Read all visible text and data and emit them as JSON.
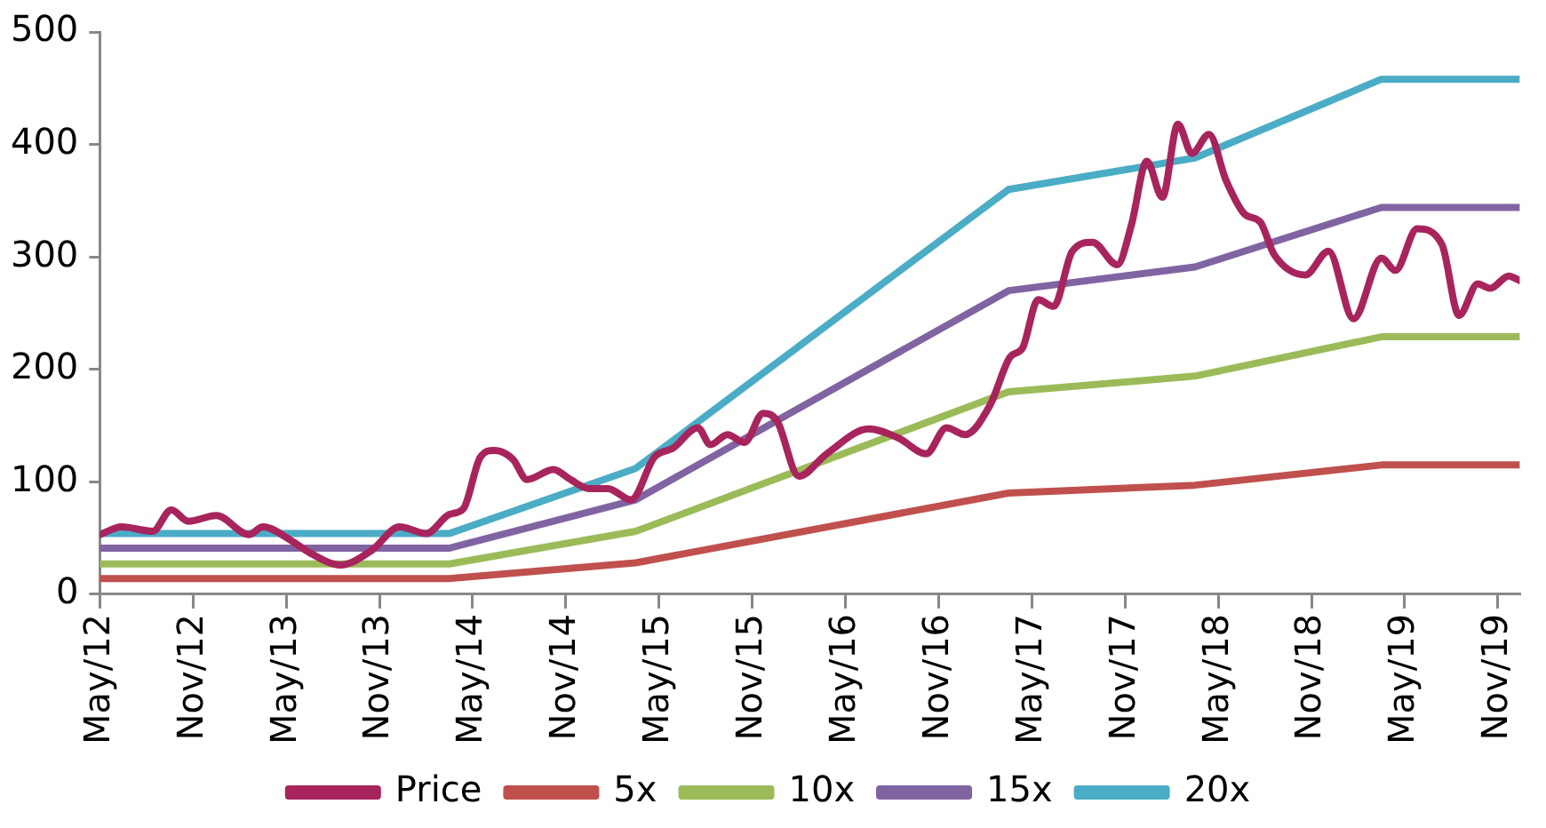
{
  "chart_data": {
    "type": "line",
    "xlim": [
      "2012-05-01",
      "2019-12-13"
    ],
    "xticks": [
      {
        "value": "2012-05-01",
        "label": "May/12"
      },
      {
        "value": "2012-11-01",
        "label": "Nov/12"
      },
      {
        "value": "2013-05-01",
        "label": "May/13"
      },
      {
        "value": "2013-11-01",
        "label": "Nov/13"
      },
      {
        "value": "2014-05-01",
        "label": "May/14"
      },
      {
        "value": "2014-11-01",
        "label": "Nov/14"
      },
      {
        "value": "2015-05-01",
        "label": "May/15"
      },
      {
        "value": "2015-11-01",
        "label": "Nov/15"
      },
      {
        "value": "2016-05-01",
        "label": "May/16"
      },
      {
        "value": "2016-11-01",
        "label": "Nov/16"
      },
      {
        "value": "2017-05-01",
        "label": "May/17"
      },
      {
        "value": "2017-11-01",
        "label": "Nov/17"
      },
      {
        "value": "2018-05-01",
        "label": "May/18"
      },
      {
        "value": "2018-11-01",
        "label": "Nov/18"
      },
      {
        "value": "2019-05-01",
        "label": "May/19"
      },
      {
        "value": "2019-11-01",
        "label": "Nov/19"
      }
    ],
    "ylim": [
      0,
      500
    ],
    "yticks": [
      0,
      100,
      200,
      300,
      400,
      500
    ],
    "grid": false,
    "legend": "bottom",
    "marker": "none",
    "line_style": "solid",
    "series": [
      {
        "name": "Price",
        "color": "#a8245c",
        "x": [
          "2012-05-01",
          "2012-06-13",
          "2012-08-13",
          "2012-09-19",
          "2012-10-22",
          "2012-12-16",
          "2013-02-19",
          "2013-03-16",
          "2013-05-10",
          "2013-06-16",
          "2013-08-16",
          "2013-10-16",
          "2013-12-10",
          "2014-02-01",
          "2014-03-16",
          "2014-04-13",
          "2014-05-16",
          "2014-06-13",
          "2014-07-19",
          "2014-08-16",
          "2014-10-07",
          "2014-11-10",
          "2014-12-16",
          "2015-01-22",
          "2015-03-07",
          "2015-04-22",
          "2015-05-28",
          "2015-07-16",
          "2015-08-10",
          "2015-09-13",
          "2015-10-16",
          "2015-11-22",
          "2015-12-19",
          "2016-02-01",
          "2016-03-25",
          "2016-06-16",
          "2016-08-13",
          "2016-10-07",
          "2016-11-16",
          "2016-12-22",
          "2017-02-10",
          "2017-03-19",
          "2017-04-13",
          "2017-05-13",
          "2017-06-13",
          "2017-07-19",
          "2017-08-28",
          "2017-10-16",
          "2017-11-13",
          "2017-12-13",
          "2018-01-13",
          "2018-02-13",
          "2018-03-10",
          "2018-04-13",
          "2018-05-16",
          "2018-06-22",
          "2018-07-22",
          "2018-08-19",
          "2018-10-19",
          "2018-12-04",
          "2019-01-22",
          "2019-03-16",
          "2019-04-13",
          "2019-05-25",
          "2019-07-13",
          "2019-08-16",
          "2019-09-22",
          "2019-10-16",
          "2019-11-22",
          "2019-12-13"
        ],
        "values": [
          53,
          60,
          56,
          75,
          65,
          70,
          53,
          60,
          48,
          37,
          26,
          39,
          60,
          54,
          71,
          76,
          122,
          128,
          120,
          102,
          111,
          102,
          94,
          94,
          84,
          122,
          130,
          148,
          133,
          142,
          135,
          161,
          154,
          105,
          125,
          147,
          139,
          125,
          148,
          142,
          168,
          211,
          219,
          262,
          256,
          305,
          313,
          293,
          328,
          385,
          353,
          418,
          392,
          409,
          368,
          338,
          331,
          302,
          284,
          305,
          245,
          299,
          288,
          325,
          311,
          248,
          276,
          272,
          283,
          279
        ]
      },
      {
        "name": "5x",
        "color": "#c0504d",
        "x": [
          "2012-05-01",
          "2014-03-16",
          "2015-03-16",
          "2017-03-16",
          "2018-03-16",
          "2019-03-16",
          "2019-12-13"
        ],
        "values": [
          14,
          14,
          28,
          90,
          97,
          115,
          115
        ]
      },
      {
        "name": "10x",
        "color": "#9bbb59",
        "x": [
          "2012-05-01",
          "2014-03-16",
          "2015-03-16",
          "2017-03-16",
          "2018-03-16",
          "2019-03-16",
          "2019-12-13"
        ],
        "values": [
          27,
          27,
          56,
          180,
          194,
          229,
          229
        ]
      },
      {
        "name": "15x",
        "color": "#8064a2",
        "x": [
          "2012-05-01",
          "2014-03-16",
          "2015-03-16",
          "2017-03-16",
          "2018-03-16",
          "2019-03-16",
          "2019-12-13"
        ],
        "values": [
          41,
          41,
          84,
          270,
          291,
          344,
          344
        ]
      },
      {
        "name": "20x",
        "color": "#4bacc6",
        "x": [
          "2012-05-01",
          "2014-03-16",
          "2015-03-16",
          "2017-03-16",
          "2018-03-16",
          "2019-03-16",
          "2019-12-13"
        ],
        "values": [
          54,
          54,
          112,
          360,
          388,
          458,
          458
        ]
      }
    ]
  }
}
